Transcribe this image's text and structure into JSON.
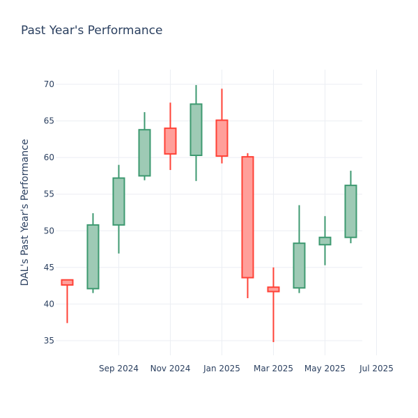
{
  "chart_data": {
    "type": "candlestick",
    "title": "Past Year's Performance",
    "xlabel": "",
    "ylabel": "DAL's Past Year's Performance",
    "ylim": [
      33,
      72
    ],
    "y_ticks": [
      35,
      40,
      45,
      50,
      55,
      60,
      65,
      70
    ],
    "x_ticks": [
      "Sep 2024",
      "Nov 2024",
      "Jan 2025",
      "Mar 2025",
      "May 2025",
      "Jul 2025"
    ],
    "grid": true,
    "colors": {
      "increasing": "#3d9970",
      "increasing_fill": "#9ecab5",
      "decreasing": "#ff4136",
      "decreasing_fill": "#ff9f9a"
    },
    "candles": [
      {
        "date": "2024-07",
        "open": 43.3,
        "high": 43.3,
        "low": 37.4,
        "close": 42.6
      },
      {
        "date": "2024-08",
        "open": 42.1,
        "high": 52.4,
        "low": 41.5,
        "close": 50.8
      },
      {
        "date": "2024-09",
        "open": 50.8,
        "high": 59.0,
        "low": 46.9,
        "close": 57.2
      },
      {
        "date": "2024-10",
        "open": 57.5,
        "high": 66.2,
        "low": 56.9,
        "close": 63.8
      },
      {
        "date": "2024-11",
        "open": 64.0,
        "high": 67.5,
        "low": 58.3,
        "close": 60.5
      },
      {
        "date": "2024-12",
        "open": 60.3,
        "high": 69.9,
        "low": 56.8,
        "close": 67.3
      },
      {
        "date": "2025-01",
        "open": 65.1,
        "high": 69.4,
        "low": 59.2,
        "close": 60.2
      },
      {
        "date": "2025-02",
        "open": 60.1,
        "high": 60.6,
        "low": 40.8,
        "close": 43.6
      },
      {
        "date": "2025-03",
        "open": 42.3,
        "high": 45.0,
        "low": 34.8,
        "close": 41.7
      },
      {
        "date": "2025-04",
        "open": 42.2,
        "high": 53.5,
        "low": 41.5,
        "close": 48.3
      },
      {
        "date": "2025-05",
        "open": 48.1,
        "high": 52.0,
        "low": 45.3,
        "close": 49.1
      },
      {
        "date": "2025-06",
        "open": 49.1,
        "high": 58.2,
        "low": 48.3,
        "close": 56.2
      }
    ]
  }
}
